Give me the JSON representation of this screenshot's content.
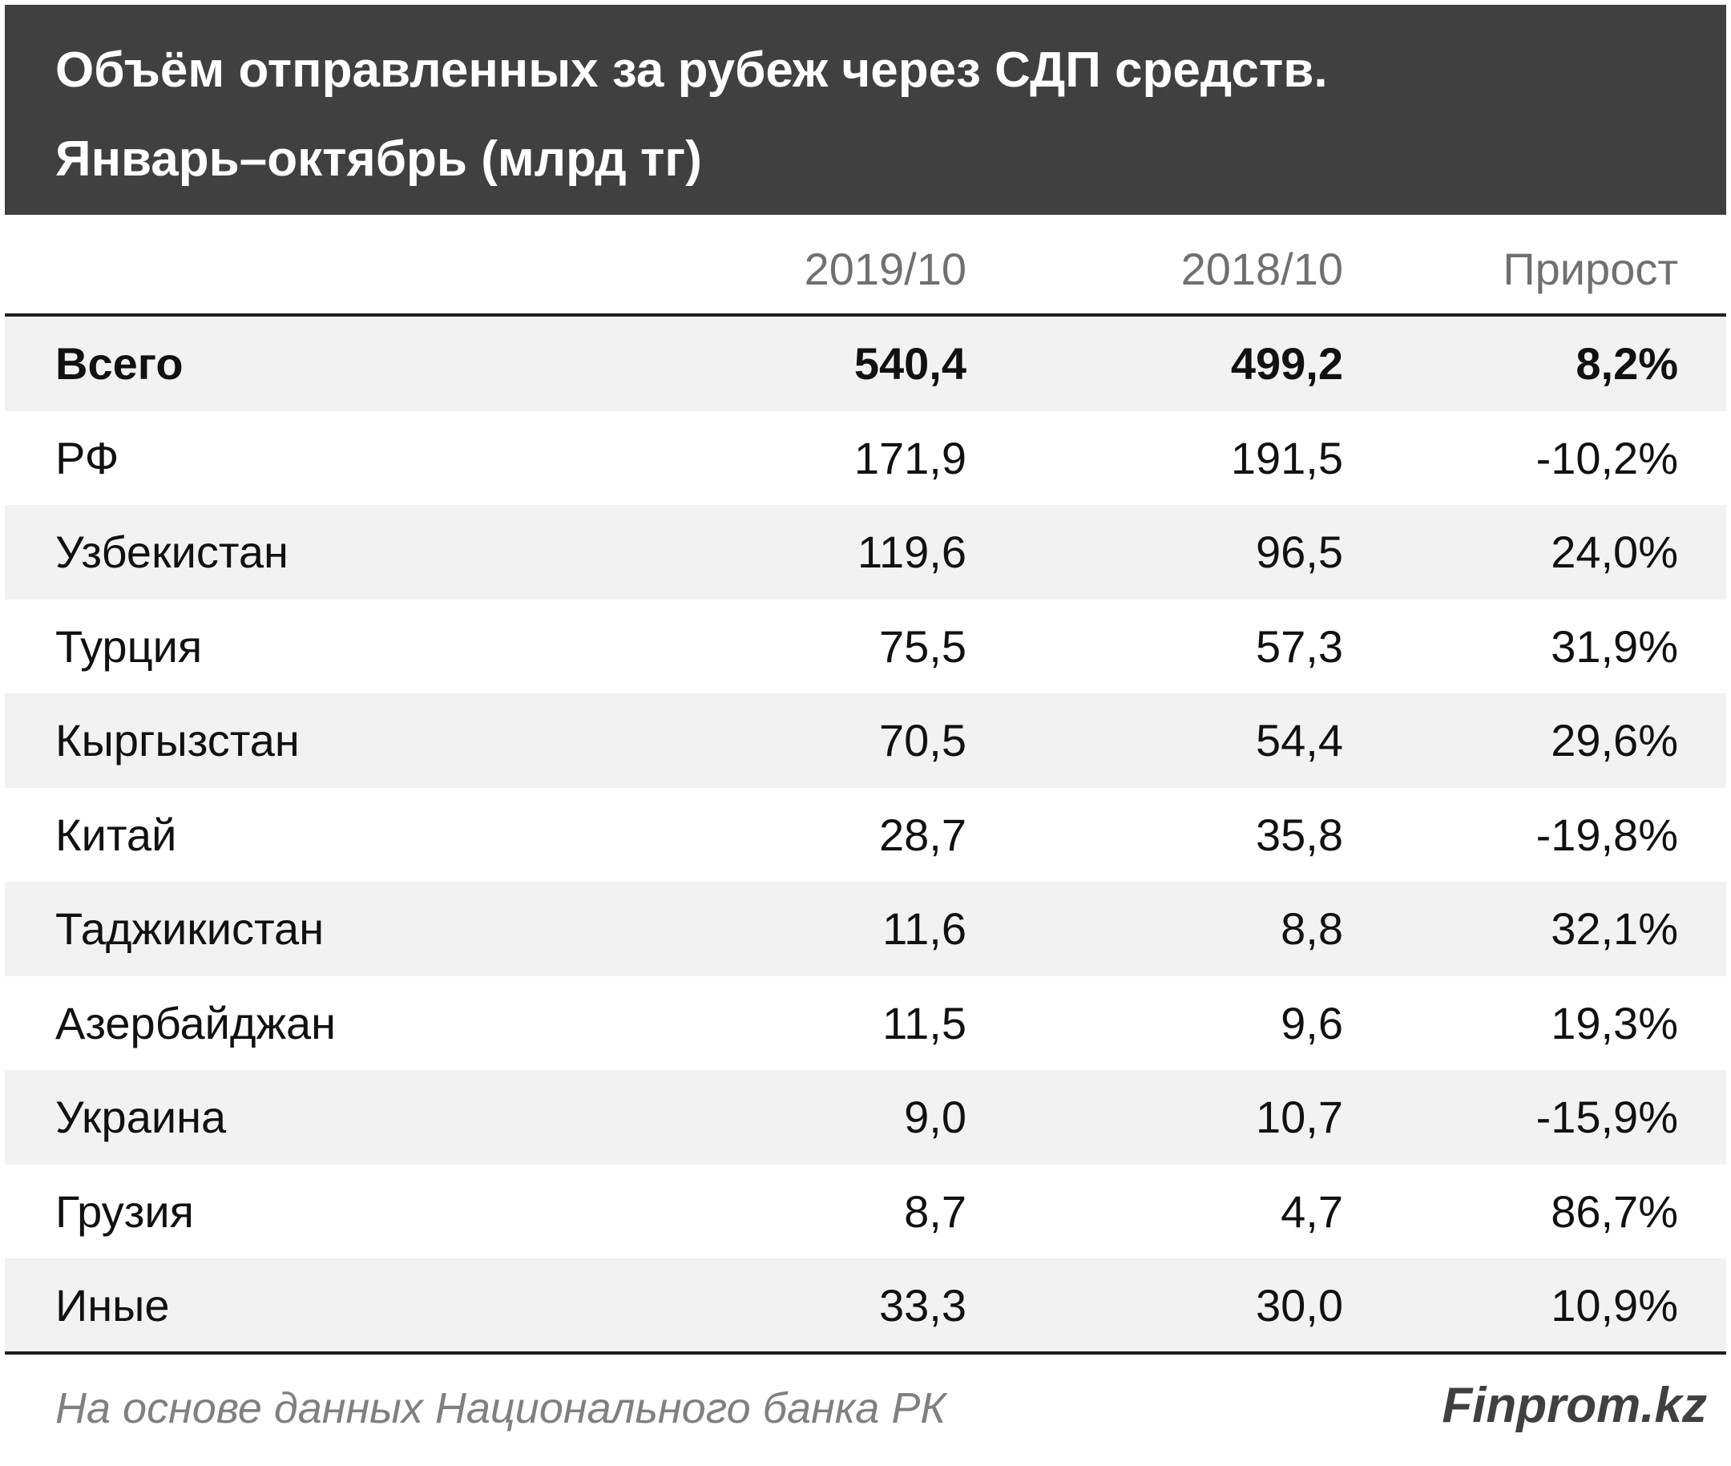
{
  "title": {
    "line1": "Объём отправленных за рубеж через СДП средств.",
    "line2": "Январь–октябрь (млрд тг)"
  },
  "columns": [
    "2019/10",
    "2018/10",
    "Прирост"
  ],
  "chart_data": {
    "type": "table",
    "title": "Объём отправленных за рубеж через СДП средств. Январь–октябрь (млрд тг)",
    "columns": [
      "2019/10",
      "2018/10",
      "Прирост"
    ],
    "rows": [
      {
        "name": "Всего",
        "v2019": "540,4",
        "v2018": "499,2",
        "growth": "8,2%",
        "bold": true
      },
      {
        "name": "РФ",
        "v2019": "171,9",
        "v2018": "191,5",
        "growth": "-10,2%"
      },
      {
        "name": "Узбекистан",
        "v2019": "119,6",
        "v2018": "96,5",
        "growth": "24,0%"
      },
      {
        "name": "Турция",
        "v2019": "75,5",
        "v2018": "57,3",
        "growth": "31,9%"
      },
      {
        "name": "Кыргызстан",
        "v2019": "70,5",
        "v2018": "54,4",
        "growth": "29,6%"
      },
      {
        "name": "Китай",
        "v2019": "28,7",
        "v2018": "35,8",
        "growth": "-19,8%"
      },
      {
        "name": "Таджикистан",
        "v2019": "11,6",
        "v2018": "8,8",
        "growth": "32,1%"
      },
      {
        "name": "Азербайджан",
        "v2019": "11,5",
        "v2018": "9,6",
        "growth": "19,3%"
      },
      {
        "name": "Украина",
        "v2019": "9,0",
        "v2018": "10,7",
        "growth": "-15,9%"
      },
      {
        "name": "Грузия",
        "v2019": "8,7",
        "v2018": "4,7",
        "growth": "86,7%"
      },
      {
        "name": "Иные",
        "v2019": "33,3",
        "v2018": "30,0",
        "growth": "10,9%"
      }
    ]
  },
  "footer": {
    "source": "На основе данных Национального банка РК",
    "brand": "Finprom.kz"
  },
  "colors": {
    "title_bg": "#404040",
    "row_shade": "#f2f2f2",
    "header_text": "#707070",
    "footer_text": "#808080"
  }
}
